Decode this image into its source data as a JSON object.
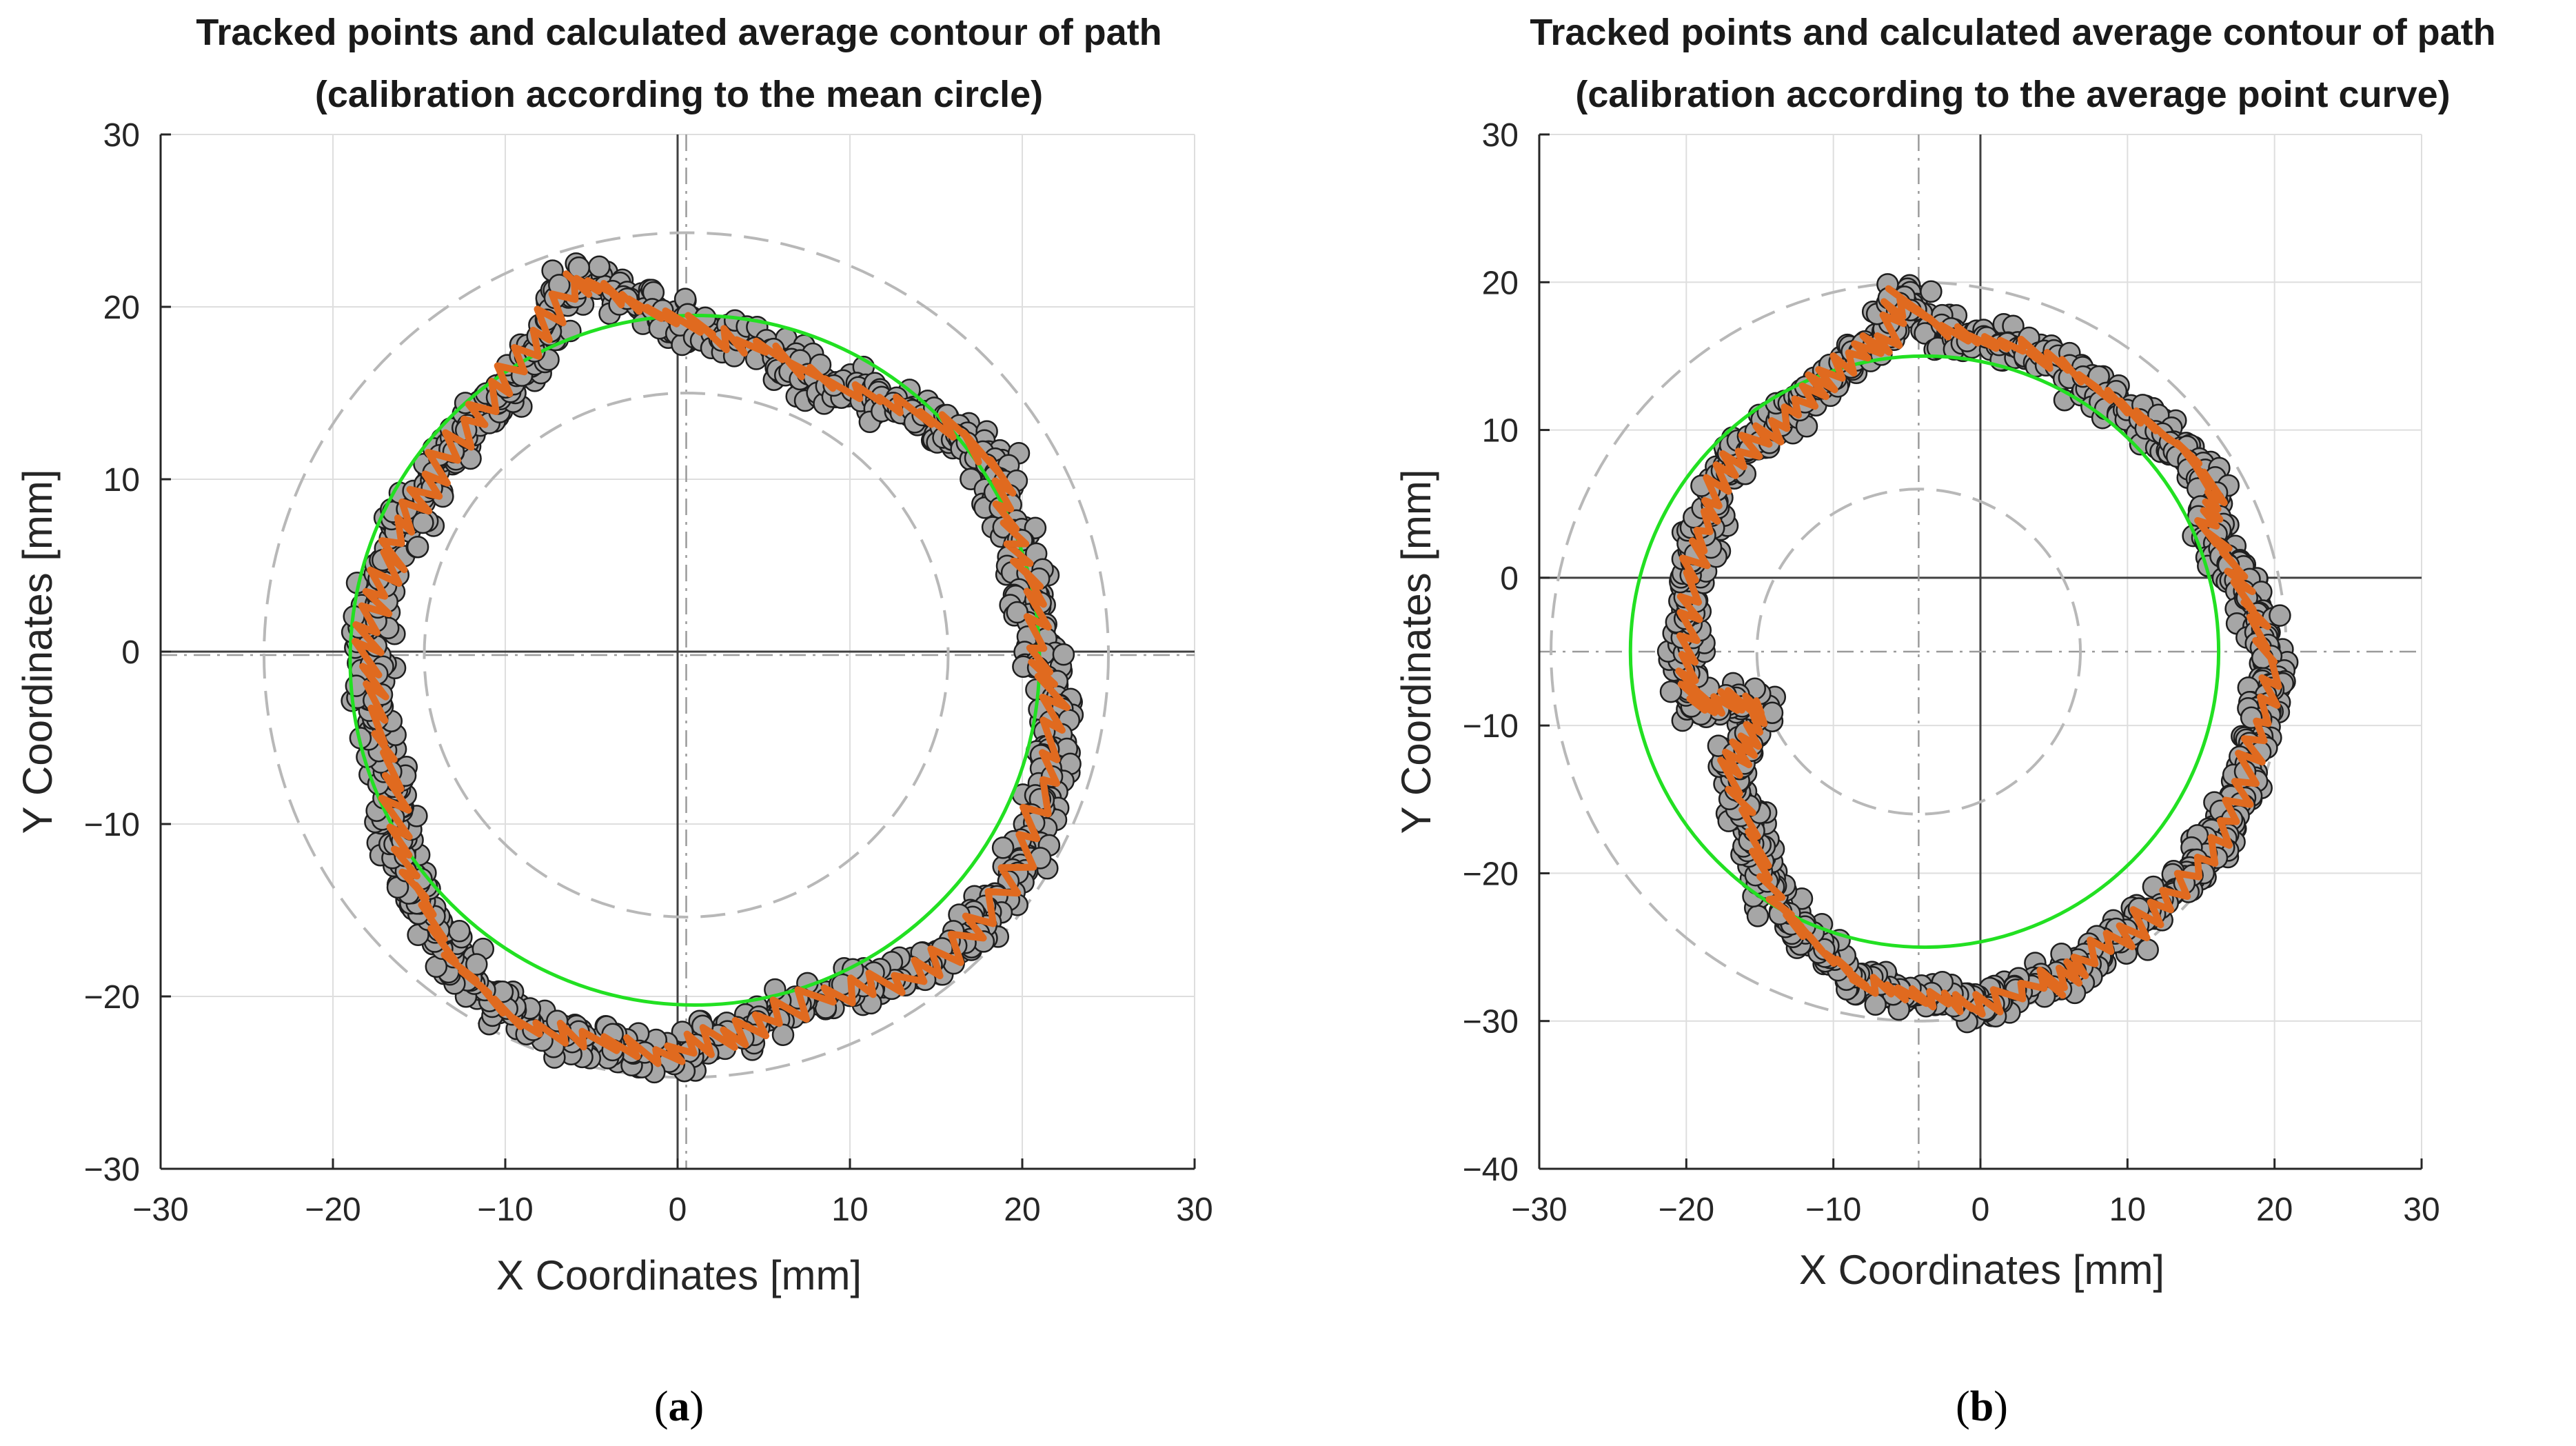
{
  "chart_data": [
    {
      "type": "scatter",
      "panel_label": "a",
      "caption_open": "(",
      "caption_close": ")",
      "title_line1": "Tracked points and calculated average contour of path",
      "title_line2": "(calibration according to the mean circle)",
      "xlabel": "X Coordinates [mm]",
      "ylabel": "Y Coordinates [mm]",
      "xlim": [
        -30,
        30
      ],
      "ylim": [
        -30,
        30
      ],
      "xticks": [
        -30,
        -20,
        -10,
        0,
        10,
        20,
        30
      ],
      "yticks": [
        -30,
        -20,
        -10,
        0,
        10,
        20,
        30
      ],
      "xtick_labels": [
        "−30",
        "−20",
        "−10",
        "0",
        "10",
        "20",
        "30"
      ],
      "ytick_labels": [
        "−30",
        "−20",
        "−10",
        "0",
        "10",
        "20",
        "30"
      ],
      "grid": true,
      "calibration_center": [
        0.5,
        -0.2
      ],
      "dashed_circles": [
        {
          "center": [
            0.5,
            -0.2
          ],
          "radius": 24.5
        },
        {
          "center": [
            0.5,
            -0.2
          ],
          "radius": 15.2
        }
      ],
      "mean_circle": {
        "center": [
          1.0,
          -0.5
        ],
        "radius": 20.0,
        "color": "#22e022"
      },
      "series": [
        {
          "name": "Tracked points",
          "color": "#a6a6a6",
          "path_points": [
            [
              -6,
              21.5
            ],
            [
              -4,
              21
            ],
            [
              -1,
              19.5
            ],
            [
              2,
              18.5
            ],
            [
              5,
              17.5
            ],
            [
              8,
              16
            ],
            [
              12,
              14.5
            ],
            [
              16,
              13
            ],
            [
              18.5,
              10.5
            ],
            [
              19.5,
              7
            ],
            [
              20.5,
              4
            ],
            [
              21,
              0
            ],
            [
              22,
              -3
            ],
            [
              21.5,
              -8
            ],
            [
              19.5,
              -13
            ],
            [
              16.5,
              -17
            ],
            [
              13,
              -19
            ],
            [
              9,
              -19.8
            ],
            [
              5,
              -21.5
            ],
            [
              2,
              -22.5
            ],
            [
              -1,
              -23.5
            ],
            [
              -5,
              -22.5
            ],
            [
              -9,
              -21.5
            ],
            [
              -12,
              -19
            ],
            [
              -14.5,
              -15.5
            ],
            [
              -16,
              -12
            ],
            [
              -16.5,
              -8
            ],
            [
              -17.5,
              -4
            ],
            [
              -18,
              0
            ],
            [
              -17.5,
              3
            ],
            [
              -16.5,
              6
            ],
            [
              -15,
              9
            ],
            [
              -13,
              12
            ],
            [
              -10.5,
              15
            ],
            [
              -8,
              18
            ]
          ]
        },
        {
          "name": "Average contour",
          "color": "#e06a1f",
          "path_points": [
            [
              -6,
              21.5
            ],
            [
              -4,
              21
            ],
            [
              -1,
              19.5
            ],
            [
              2,
              18.5
            ],
            [
              5,
              17.5
            ],
            [
              8,
              16
            ],
            [
              12,
              14.5
            ],
            [
              16,
              13
            ],
            [
              18.5,
              10.5
            ],
            [
              19.5,
              7
            ],
            [
              20.5,
              4
            ],
            [
              21,
              0
            ],
            [
              22,
              -3
            ],
            [
              21.5,
              -8
            ],
            [
              19.5,
              -13
            ],
            [
              16.5,
              -17
            ],
            [
              13,
              -19
            ],
            [
              9,
              -19.8
            ],
            [
              5,
              -21.5
            ],
            [
              2,
              -22.5
            ],
            [
              -1,
              -23.5
            ],
            [
              -5,
              -22.5
            ],
            [
              -9,
              -21.5
            ],
            [
              -12,
              -19
            ],
            [
              -14.5,
              -15.5
            ],
            [
              -16,
              -12
            ],
            [
              -16.5,
              -8
            ],
            [
              -17.5,
              -4
            ],
            [
              -18,
              0
            ],
            [
              -17.5,
              3
            ],
            [
              -16.5,
              6
            ],
            [
              -15,
              9
            ],
            [
              -13,
              12
            ],
            [
              -10.5,
              15
            ],
            [
              -8,
              18
            ],
            [
              -6,
              21.5
            ]
          ]
        }
      ]
    },
    {
      "type": "scatter",
      "panel_label": "b",
      "caption_open": "(",
      "caption_close": ")",
      "title_line1": "Tracked points and calculated average contour of path",
      "title_line2": "(calibration according to the average point curve)",
      "xlabel": "X Coordinates [mm]",
      "ylabel": "Y Coordinates [mm]",
      "xlim": [
        -30,
        30
      ],
      "ylim": [
        -40,
        30
      ],
      "xticks": [
        -30,
        -20,
        -10,
        0,
        10,
        20,
        30
      ],
      "yticks": [
        -40,
        -30,
        -20,
        -10,
        0,
        10,
        20,
        30
      ],
      "xtick_labels": [
        "−30",
        "−20",
        "−10",
        "0",
        "10",
        "20",
        "30"
      ],
      "ytick_labels": [
        "−40",
        "−30",
        "−20",
        "−10",
        "0",
        "10",
        "20",
        "30"
      ],
      "grid": true,
      "calibration_center": [
        -4.2,
        -5
      ],
      "dashed_circles": [
        {
          "center": [
            -4.2,
            -5
          ],
          "radius": 25
        },
        {
          "center": [
            -4.2,
            -5
          ],
          "radius": 11
        }
      ],
      "mean_circle": {
        "center": [
          -3.8,
          -5
        ],
        "radius": 20,
        "color": "#22e022"
      },
      "series": [
        {
          "name": "Tracked points",
          "color": "#a6a6a6",
          "path_points": [
            [
              -5.5,
              19
            ],
            [
              -3,
              17
            ],
            [
              0,
              16
            ],
            [
              3,
              15.5
            ],
            [
              6,
              14
            ],
            [
              9,
              12
            ],
            [
              12,
              10
            ],
            [
              14.5,
              8
            ],
            [
              16,
              5.5
            ],
            [
              15.5,
              3.5
            ],
            [
              17,
              1
            ],
            [
              18.5,
              -2
            ],
            [
              20,
              -6
            ],
            [
              19,
              -10
            ],
            [
              18,
              -14
            ],
            [
              16,
              -18
            ],
            [
              13,
              -21.5
            ],
            [
              10,
              -24
            ],
            [
              7,
              -26
            ],
            [
              5,
              -27.5
            ],
            [
              4.5,
              -27
            ],
            [
              0,
              -29
            ],
            [
              -2,
              -28.5
            ],
            [
              -5,
              -28
            ],
            [
              -8,
              -27.5
            ],
            [
              -10,
              -26
            ],
            [
              -12,
              -24
            ],
            [
              -14,
              -22
            ],
            [
              -15.5,
              -18
            ],
            [
              -17,
              -13
            ],
            [
              -16,
              -11
            ],
            [
              -15,
              -9
            ],
            [
              -17,
              -8
            ],
            [
              -19,
              -9
            ],
            [
              -20,
              -7
            ],
            [
              -20,
              -3
            ],
            [
              -19.5,
              1
            ],
            [
              -18.5,
              4
            ],
            [
              -17.5,
              7
            ],
            [
              -15.5,
              9
            ],
            [
              -13,
              11
            ],
            [
              -11,
              13
            ],
            [
              -8.5,
              15
            ],
            [
              -6.5,
              16
            ]
          ]
        },
        {
          "name": "Average contour",
          "color": "#e06a1f",
          "path_points": [
            [
              -5.5,
              19
            ],
            [
              -3,
              17
            ],
            [
              0,
              16
            ],
            [
              3,
              15.5
            ],
            [
              6,
              14
            ],
            [
              9,
              12
            ],
            [
              12,
              10
            ],
            [
              14.5,
              8
            ],
            [
              16,
              5.5
            ],
            [
              15.5,
              3.5
            ],
            [
              17,
              1
            ],
            [
              18.5,
              -2
            ],
            [
              20,
              -6
            ],
            [
              19,
              -10
            ],
            [
              18,
              -14
            ],
            [
              16,
              -18
            ],
            [
              13,
              -21.5
            ],
            [
              10,
              -24
            ],
            [
              7,
              -26
            ],
            [
              5,
              -27.5
            ],
            [
              4.5,
              -27
            ],
            [
              0,
              -29
            ],
            [
              -2,
              -28.5
            ],
            [
              -5,
              -28
            ],
            [
              -8,
              -27.5
            ],
            [
              -10,
              -26
            ],
            [
              -12,
              -24
            ],
            [
              -14,
              -22
            ],
            [
              -15.5,
              -18
            ],
            [
              -17,
              -13
            ],
            [
              -16,
              -11
            ],
            [
              -15,
              -9
            ],
            [
              -17,
              -8
            ],
            [
              -19,
              -9
            ],
            [
              -20,
              -7
            ],
            [
              -20,
              -3
            ],
            [
              -19.5,
              1
            ],
            [
              -18.5,
              4
            ],
            [
              -17.5,
              7
            ],
            [
              -15.5,
              9
            ],
            [
              -13,
              11
            ],
            [
              -11,
              13
            ],
            [
              -8.5,
              15
            ],
            [
              -6.5,
              16
            ],
            [
              -5.5,
              19
            ]
          ]
        }
      ]
    }
  ]
}
